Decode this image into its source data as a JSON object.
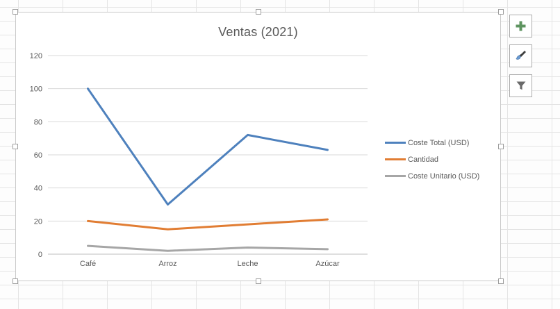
{
  "chart_data": {
    "type": "line",
    "title": "Ventas (2021)",
    "categories": [
      "Café",
      "Arroz",
      "Leche",
      "Azúcar"
    ],
    "series": [
      {
        "name": "Coste Total (USD)",
        "color": "#4E81BD",
        "values": [
          100,
          30,
          72,
          63
        ]
      },
      {
        "name": "Cantidad",
        "color": "#E17D33",
        "values": [
          20,
          15,
          18,
          21
        ]
      },
      {
        "name": "Coste Unitario (USD)",
        "color": "#A6A6A6",
        "values": [
          5,
          2,
          4,
          3
        ]
      }
    ],
    "ylim": [
      0,
      120
    ],
    "y_ticks": [
      0,
      20,
      40,
      60,
      80,
      100,
      120
    ],
    "grid": true,
    "legend_position": "right",
    "xlabel": "",
    "ylabel": ""
  },
  "chart_buttons": [
    {
      "id": "chart-elements-button",
      "icon": "plus-icon",
      "color": "#5E9460"
    },
    {
      "id": "chart-styles-button",
      "icon": "paintbrush-icon",
      "color": "#404040"
    },
    {
      "id": "chart-filters-button",
      "icon": "funnel-icon",
      "color": "#6a6a6a"
    }
  ],
  "colors": {
    "grid_line": "#d9d9d9",
    "axis_line": "#bfbfbf",
    "text": "#595959",
    "chart_border": "#c9c9c9",
    "sheet_grid": "#e4e4e4"
  }
}
